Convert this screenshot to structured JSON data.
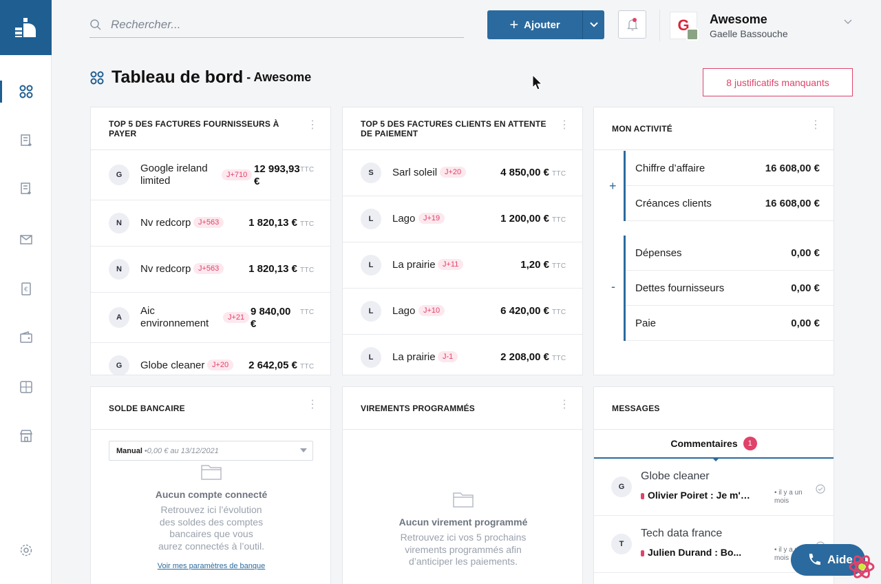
{
  "search": {
    "placeholder": "Rechercher..."
  },
  "toolbar": {
    "add_label": "Ajouter"
  },
  "account": {
    "company": "Awesome",
    "logo_letter": "G",
    "user": "Gaelle Bassouche"
  },
  "header": {
    "title": "Tableau de bord",
    "subtitle": "- Awesome",
    "missing_docs": "8 justificatifs manquants"
  },
  "suppliers": {
    "title": "TOP 5 DES FACTURES FOURNISSEURS À PAYER",
    "rows": [
      {
        "initial": "G",
        "name_line1": "Google ireland",
        "name_line2": "limited",
        "badge": "J+710",
        "amount_line1": "12 993,93",
        "amount_line2": "€",
        "ttc": "TTC"
      },
      {
        "initial": "N",
        "name_line1": "Nv redcorp",
        "name_line2": "",
        "badge": "J+563",
        "amount_line1": "1 820,13 €",
        "amount_line2": "",
        "ttc": "TTC"
      },
      {
        "initial": "N",
        "name_line1": "Nv redcorp",
        "name_line2": "",
        "badge": "J+563",
        "amount_line1": "1 820,13 €",
        "amount_line2": "",
        "ttc": "TTC"
      },
      {
        "initial": "A",
        "name_line1": "Aic",
        "name_line2": "environnement",
        "badge": "J+21",
        "amount_line1": "9 840,00",
        "amount_line2": "€",
        "ttc": "TTC"
      },
      {
        "initial": "G",
        "name_line1": "Globe cleaner",
        "name_line2": "",
        "badge": "J+20",
        "amount_line1": "2 642,05 €",
        "amount_line2": "",
        "ttc": "TTC"
      }
    ]
  },
  "clients": {
    "title": "TOP 5 DES FACTURES CLIENTS EN ATTENTE DE PAIEMENT",
    "rows": [
      {
        "initial": "S",
        "name": "Sarl soleil",
        "badge": "J+20",
        "amount": "4 850,00 €",
        "ttc": "TTC"
      },
      {
        "initial": "L",
        "name": "Lago",
        "badge": "J+19",
        "amount": "1 200,00 €",
        "ttc": "TTC"
      },
      {
        "initial": "L",
        "name": "La prairie",
        "badge": "J+11",
        "amount": "1,20 €",
        "ttc": "TTC"
      },
      {
        "initial": "L",
        "name": "Lago",
        "badge": "J+10",
        "amount": "6 420,00 €",
        "ttc": "TTC"
      },
      {
        "initial": "L",
        "name": "La prairie",
        "badge": "J-1",
        "amount": "2 208,00 €",
        "ttc": "TTC"
      }
    ]
  },
  "activity": {
    "title": "MON ACTIVITÉ",
    "plus_sign": "+",
    "minus_sign": "-",
    "income": [
      {
        "label": "Chiffre d’affaire",
        "value": "16 608,00 €"
      },
      {
        "label": "Créances clients",
        "value": "16 608,00 €"
      }
    ],
    "expenses": [
      {
        "label": "Dépenses",
        "value": "0,00 €"
      },
      {
        "label": "Dettes fournisseurs",
        "value": "0,00 €"
      },
      {
        "label": "Paie",
        "value": "0,00 €"
      }
    ]
  },
  "bank": {
    "title": "SOLDE BANCAIRE",
    "select_type": "Manual",
    "select_info": "•0,00 € au 13/12/2021",
    "empty_title": "Aucun compte connecté",
    "empty_desc_1": "Retrouvez ici l’évolution",
    "empty_desc_2": "des soldes des comptes",
    "empty_desc_3": "bancaires que vous",
    "empty_desc_4": "aurez connectés à l’outil.",
    "link": "Voir mes paramètres de banque"
  },
  "transfers": {
    "title": "VIREMENTS PROGRAMMÉS",
    "empty_title": "Aucun virement programmé",
    "empty_desc_1": "Retrouvez ici vos 5 prochains",
    "empty_desc_2": "virements programmés afin",
    "empty_desc_3": "d’anticiper les paiements."
  },
  "messages": {
    "title": "MESSAGES",
    "tab_label": "Commentaires",
    "tab_count": "1",
    "items": [
      {
        "initial": "G",
        "title": "Globe cleaner",
        "text": "Olivier Poiret : Je m'en c...",
        "time_1": "• il y a un",
        "time_2": "mois"
      },
      {
        "initial": "T",
        "title": "Tech data france",
        "text": "Julien Durand : Bo...",
        "time_1": "• il y a un",
        "time_2": "mois"
      }
    ]
  },
  "help": {
    "label": "Aide"
  },
  "colors": {
    "primary": "#2b6a9e",
    "accent": "#e0426a",
    "sidebar_logo": "#1f5e91"
  }
}
